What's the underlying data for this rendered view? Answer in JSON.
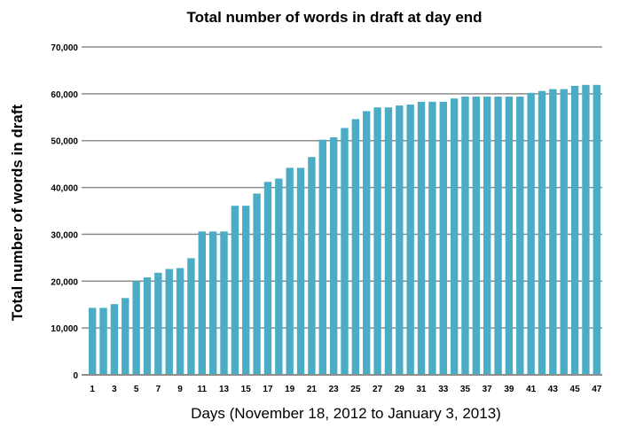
{
  "chart_data": {
    "type": "bar",
    "title": "Total number of words in draft at day end",
    "xlabel": "Days  (November 18, 2012 to January 3, 2013)",
    "ylabel": "Total number of words in draft",
    "ylim": [
      0,
      70000
    ],
    "yticks": [
      "0",
      "10,000",
      "20,000",
      "30,000",
      "40,000",
      "50,000",
      "60,000",
      "70,000"
    ],
    "xtick_labels": [
      "1",
      "3",
      "5",
      "7",
      "9",
      "11",
      "13",
      "15",
      "17",
      "19",
      "21",
      "23",
      "25",
      "27",
      "29",
      "31",
      "33",
      "35",
      "37",
      "39",
      "41",
      "43",
      "45",
      "47"
    ],
    "grid": true,
    "legend": null,
    "bar_color": "#4bacc6",
    "grid_color": "#8c8c8c",
    "categories": [
      1,
      2,
      3,
      4,
      5,
      6,
      7,
      8,
      9,
      10,
      11,
      12,
      13,
      14,
      15,
      16,
      17,
      18,
      19,
      20,
      21,
      22,
      23,
      24,
      25,
      26,
      27,
      28,
      29,
      30,
      31,
      32,
      33,
      34,
      35,
      36,
      37,
      38,
      39,
      40,
      41,
      42,
      43,
      44,
      45,
      46,
      47
    ],
    "values": [
      14300,
      14300,
      15100,
      16400,
      20000,
      20800,
      21800,
      22600,
      22800,
      24900,
      30600,
      30600,
      30600,
      36100,
      36100,
      38700,
      41200,
      41900,
      44200,
      44200,
      46500,
      50200,
      50700,
      52700,
      54600,
      56300,
      57100,
      57100,
      57500,
      57700,
      58300,
      58300,
      58300,
      59000,
      59400,
      59400,
      59400,
      59400,
      59400,
      59400,
      60200,
      60600,
      61000,
      61000,
      61700,
      61900,
      61900
    ]
  }
}
